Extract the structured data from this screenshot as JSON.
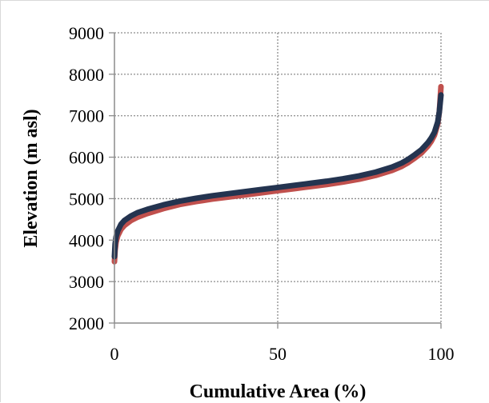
{
  "chart_data": {
    "type": "line",
    "title": "",
    "xlabel": "Cumulative Area (%)",
    "ylabel": "Elevation (m asl)",
    "xlim": [
      0,
      100
    ],
    "ylim": [
      2000,
      9000
    ],
    "x_ticks": [
      "0",
      "50",
      "100"
    ],
    "y_ticks": [
      "2000",
      "3000",
      "4000",
      "5000",
      "6000",
      "7000",
      "8000",
      "9000"
    ],
    "grid": true,
    "legend": "none",
    "series": [
      {
        "color": "#c0504d",
        "points": [
          [
            0,
            3480
          ],
          [
            0.2,
            3750
          ],
          [
            0.5,
            3950
          ],
          [
            1,
            4100
          ],
          [
            2,
            4260
          ],
          [
            3,
            4350
          ],
          [
            5,
            4470
          ],
          [
            7,
            4550
          ],
          [
            10,
            4640
          ],
          [
            15,
            4760
          ],
          [
            20,
            4860
          ],
          [
            25,
            4930
          ],
          [
            30,
            4990
          ],
          [
            35,
            5040
          ],
          [
            40,
            5090
          ],
          [
            45,
            5140
          ],
          [
            50,
            5190
          ],
          [
            55,
            5240
          ],
          [
            60,
            5290
          ],
          [
            65,
            5340
          ],
          [
            70,
            5400
          ],
          [
            75,
            5470
          ],
          [
            80,
            5560
          ],
          [
            85,
            5680
          ],
          [
            88,
            5780
          ],
          [
            90,
            5870
          ],
          [
            92,
            5980
          ],
          [
            94,
            6100
          ],
          [
            96,
            6270
          ],
          [
            97,
            6380
          ],
          [
            98,
            6530
          ],
          [
            99,
            6800
          ],
          [
            99.5,
            7100
          ],
          [
            100,
            7700
          ]
        ]
      },
      {
        "color": "#243450",
        "points": [
          [
            0,
            3600
          ],
          [
            0.2,
            3900
          ],
          [
            0.5,
            4080
          ],
          [
            1,
            4220
          ],
          [
            2,
            4380
          ],
          [
            3,
            4470
          ],
          [
            5,
            4580
          ],
          [
            7,
            4660
          ],
          [
            10,
            4740
          ],
          [
            15,
            4850
          ],
          [
            20,
            4940
          ],
          [
            25,
            5010
          ],
          [
            30,
            5070
          ],
          [
            35,
            5120
          ],
          [
            40,
            5170
          ],
          [
            45,
            5220
          ],
          [
            50,
            5270
          ],
          [
            55,
            5320
          ],
          [
            60,
            5370
          ],
          [
            65,
            5420
          ],
          [
            70,
            5480
          ],
          [
            75,
            5550
          ],
          [
            80,
            5640
          ],
          [
            85,
            5760
          ],
          [
            88,
            5860
          ],
          [
            90,
            5950
          ],
          [
            92,
            6060
          ],
          [
            94,
            6180
          ],
          [
            96,
            6350
          ],
          [
            97,
            6460
          ],
          [
            98,
            6600
          ],
          [
            99,
            6850
          ],
          [
            99.5,
            7100
          ],
          [
            100,
            7500
          ]
        ]
      }
    ]
  }
}
